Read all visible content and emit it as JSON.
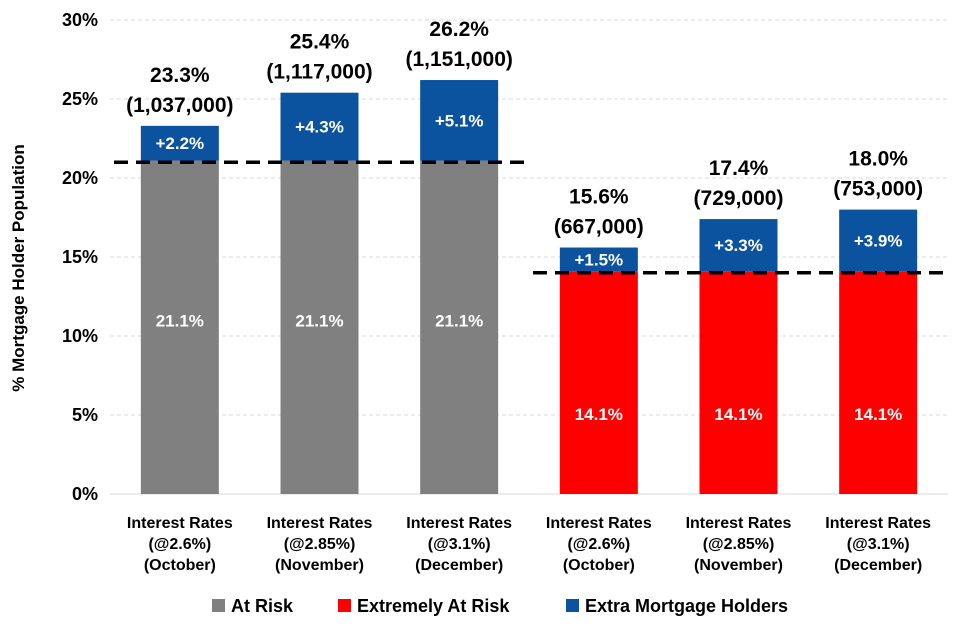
{
  "chart_data": {
    "type": "bar",
    "stacked": true,
    "ylabel": "% Mortgage Holder Population",
    "ylim": [
      0,
      30
    ],
    "yticks": [
      "0%",
      "5%",
      "10%",
      "15%",
      "20%",
      "25%",
      "30%"
    ],
    "grid": true,
    "legend_position": "bottom",
    "categories": [
      [
        "Interest Rates",
        "(@2.6%)",
        "(October)"
      ],
      [
        "Interest Rates",
        "(@2.85%)",
        "(November)"
      ],
      [
        "Interest Rates",
        "(@3.1%)",
        "(December)"
      ],
      [
        "Interest Rates",
        "(@2.6%)",
        "(October)"
      ],
      [
        "Interest Rates",
        "(@2.85%)",
        "(November)"
      ],
      [
        "Interest Rates",
        "(@3.1%)",
        "(December)"
      ]
    ],
    "series": [
      {
        "name": "At Risk",
        "color": "#808080",
        "values": [
          21.1,
          21.1,
          21.1,
          null,
          null,
          null
        ],
        "labels": [
          "21.1%",
          "21.1%",
          "21.1%",
          "",
          "",
          ""
        ]
      },
      {
        "name": "Extremely At Risk",
        "color": "#ff0000",
        "values": [
          null,
          null,
          null,
          14.1,
          14.1,
          14.1
        ],
        "labels": [
          "",
          "",
          "",
          "14.1%",
          "14.1%",
          "14.1%"
        ]
      },
      {
        "name": "Extra Mortgage Holders",
        "color": "#0b539e",
        "values": [
          2.2,
          4.3,
          5.1,
          1.5,
          3.3,
          3.9
        ],
        "labels": [
          "+2.2%",
          "+4.3%",
          "+5.1%",
          "+1.5%",
          "+3.3%",
          "+3.9%"
        ]
      }
    ],
    "totals": [
      [
        "23.3%",
        "(1,037,000)"
      ],
      [
        "25.4%",
        "(1,117,000)"
      ],
      [
        "26.2%",
        "(1,151,000)"
      ],
      [
        "15.6%",
        "(667,000)"
      ],
      [
        "17.4%",
        "(729,000)"
      ],
      [
        "18.0%",
        "(753,000)"
      ]
    ],
    "reference_lines": [
      {
        "value": 21.0,
        "from_category": 0,
        "to_category": 2,
        "style": "dashed"
      },
      {
        "value": 14.0,
        "from_category": 3,
        "to_category": 5,
        "style": "dashed"
      }
    ]
  }
}
